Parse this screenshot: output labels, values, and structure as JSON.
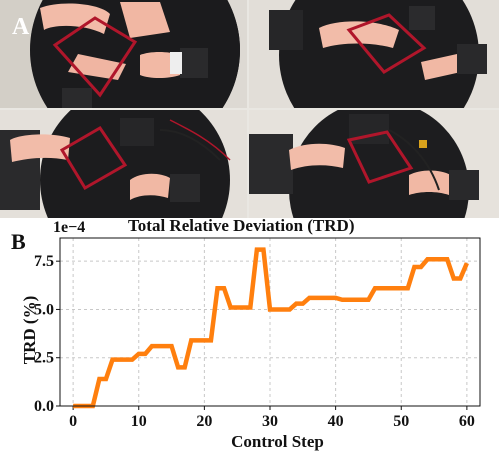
{
  "panel_a": {
    "letter": "A"
  },
  "panel_b": {
    "letter": "B"
  },
  "chart_data": {
    "type": "line",
    "title": "Total Relative Deviation (TRD)",
    "xlabel": "Control Step",
    "ylabel": "TRD (%)",
    "y_multiplier": "1e−4",
    "xlim": [
      -2,
      62
    ],
    "ylim": [
      0,
      8.7
    ],
    "xticks": [
      "0",
      "10",
      "20",
      "30",
      "40",
      "50",
      "60"
    ],
    "yticks": [
      "0.0",
      "2.5",
      "5.0",
      "7.5"
    ],
    "grid": true,
    "line_color": "#ff7f0e",
    "series": [
      {
        "x": [
          0,
          1,
          2,
          3,
          4,
          5,
          6,
          7,
          8,
          9,
          10,
          11,
          12,
          13,
          14,
          15,
          16,
          17,
          18,
          19,
          20,
          21,
          22,
          23,
          24,
          25,
          26,
          27,
          28,
          29,
          30,
          31,
          32,
          33,
          34,
          35,
          36,
          37,
          38,
          39,
          40,
          41,
          42,
          43,
          44,
          45,
          46,
          47,
          48,
          49,
          50,
          51,
          52,
          53,
          54,
          55,
          56,
          57,
          58,
          59,
          60
        ],
        "y": [
          0.0,
          0.0,
          0.0,
          0.0,
          1.4,
          1.4,
          2.4,
          2.4,
          2.4,
          2.4,
          2.7,
          2.7,
          3.1,
          3.1,
          3.1,
          3.1,
          2.0,
          2.0,
          3.4,
          3.4,
          3.4,
          3.4,
          6.1,
          6.1,
          5.1,
          5.1,
          5.1,
          5.1,
          8.1,
          8.1,
          5.0,
          5.0,
          5.0,
          5.0,
          5.3,
          5.3,
          5.6,
          5.6,
          5.6,
          5.6,
          5.6,
          5.5,
          5.5,
          5.5,
          5.5,
          5.5,
          6.1,
          6.1,
          6.1,
          6.1,
          6.1,
          6.1,
          7.2,
          7.2,
          7.6,
          7.6,
          7.6,
          7.6,
          6.6,
          6.6,
          7.4
        ]
      }
    ]
  }
}
